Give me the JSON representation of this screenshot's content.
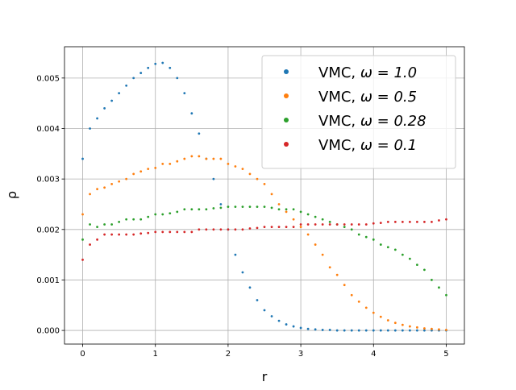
{
  "chart_data": {
    "type": "scatter",
    "title": "",
    "xlabel": "r",
    "ylabel": "ρ",
    "xlim": [
      -0.25,
      5.25
    ],
    "ylim": [
      -0.00027,
      0.00562
    ],
    "xticks": [
      0,
      1,
      2,
      3,
      4,
      5
    ],
    "xtick_labels": [
      "0",
      "1",
      "2",
      "3",
      "4",
      "5"
    ],
    "yticks": [
      0.0,
      0.001,
      0.002,
      0.003,
      0.004,
      0.005
    ],
    "ytick_labels": [
      "0.000",
      "0.001",
      "0.002",
      "0.003",
      "0.004",
      "0.005"
    ],
    "grid": true,
    "legend_position": "top-right",
    "x": [
      0.0,
      0.1,
      0.2,
      0.3,
      0.4,
      0.5,
      0.6,
      0.7,
      0.8,
      0.9,
      1.0,
      1.1,
      1.2,
      1.3,
      1.4,
      1.5,
      1.6,
      1.7,
      1.8,
      1.9,
      2.0,
      2.1,
      2.2,
      2.3,
      2.4,
      2.5,
      2.6,
      2.7,
      2.8,
      2.9,
      3.0,
      3.1,
      3.2,
      3.3,
      3.4,
      3.5,
      3.6,
      3.7,
      3.8,
      3.9,
      4.0,
      4.1,
      4.2,
      4.3,
      4.4,
      4.5,
      4.6,
      4.7,
      4.8,
      4.9,
      5.0
    ],
    "series": [
      {
        "label_prefix": "VMC, ",
        "label_math": "ω = 1.0",
        "color": "#1f77b4",
        "values": [
          0.0034,
          0.004,
          0.0042,
          0.0044,
          0.00455,
          0.0047,
          0.00485,
          0.005,
          0.0051,
          0.0052,
          0.00528,
          0.0053,
          0.0052,
          0.005,
          0.0047,
          0.0043,
          0.0039,
          0.0034,
          0.003,
          0.0025,
          0.002,
          0.0015,
          0.00115,
          0.00085,
          0.0006,
          0.0004,
          0.00028,
          0.00019,
          0.00012,
          8e-05,
          5e-05,
          3e-05,
          2e-05,
          1e-05,
          1e-05,
          0.0,
          0.0,
          0.0,
          0.0,
          0.0,
          0.0,
          0.0,
          0.0,
          0.0,
          0.0,
          0.0,
          0.0,
          0.0,
          0.0,
          0.0,
          0.0
        ]
      },
      {
        "label_prefix": "VMC, ",
        "label_math": "ω = 0.5",
        "color": "#ff7f0e",
        "values": [
          0.0023,
          0.0027,
          0.0028,
          0.00283,
          0.0029,
          0.00295,
          0.003,
          0.0031,
          0.00315,
          0.0032,
          0.00322,
          0.0033,
          0.0033,
          0.00335,
          0.0034,
          0.00345,
          0.00345,
          0.0034,
          0.0034,
          0.0034,
          0.0033,
          0.00325,
          0.0032,
          0.0031,
          0.003,
          0.0029,
          0.0027,
          0.0025,
          0.00235,
          0.0022,
          0.00205,
          0.0019,
          0.0017,
          0.0015,
          0.00125,
          0.0011,
          0.0009,
          0.0007,
          0.00057,
          0.00045,
          0.00035,
          0.00027,
          0.0002,
          0.00015,
          0.00011,
          8e-05,
          6e-05,
          4e-05,
          3e-05,
          2e-05,
          1e-05
        ]
      },
      {
        "label_prefix": "VMC, ",
        "label_math": "ω = 0.28",
        "color": "#2ca02c",
        "values": [
          0.0018,
          0.0021,
          0.00205,
          0.0021,
          0.0021,
          0.00215,
          0.0022,
          0.0022,
          0.0022,
          0.00225,
          0.0023,
          0.0023,
          0.00232,
          0.00235,
          0.0024,
          0.0024,
          0.0024,
          0.0024,
          0.00242,
          0.00243,
          0.00245,
          0.00245,
          0.00245,
          0.00245,
          0.00245,
          0.00245,
          0.00243,
          0.0024,
          0.0024,
          0.0024,
          0.00235,
          0.0023,
          0.00225,
          0.0022,
          0.00215,
          0.0021,
          0.00205,
          0.002,
          0.0019,
          0.00185,
          0.0018,
          0.0017,
          0.00165,
          0.0016,
          0.0015,
          0.00142,
          0.0013,
          0.0012,
          0.001,
          0.00085,
          0.0007
        ]
      },
      {
        "label_prefix": "VMC, ",
        "label_math": "ω = 0.1",
        "color": "#d62728",
        "values": [
          0.0014,
          0.0017,
          0.0018,
          0.0019,
          0.0019,
          0.0019,
          0.0019,
          0.0019,
          0.00192,
          0.00193,
          0.00195,
          0.00195,
          0.00195,
          0.00195,
          0.00195,
          0.00195,
          0.002,
          0.002,
          0.002,
          0.002,
          0.002,
          0.002,
          0.002,
          0.00202,
          0.00203,
          0.00205,
          0.00205,
          0.00205,
          0.00205,
          0.00205,
          0.0021,
          0.0021,
          0.0021,
          0.0021,
          0.0021,
          0.0021,
          0.0021,
          0.0021,
          0.0021,
          0.0021,
          0.00212,
          0.00213,
          0.00215,
          0.00215,
          0.00215,
          0.00215,
          0.00215,
          0.00215,
          0.00215,
          0.00218,
          0.0022
        ]
      }
    ]
  }
}
